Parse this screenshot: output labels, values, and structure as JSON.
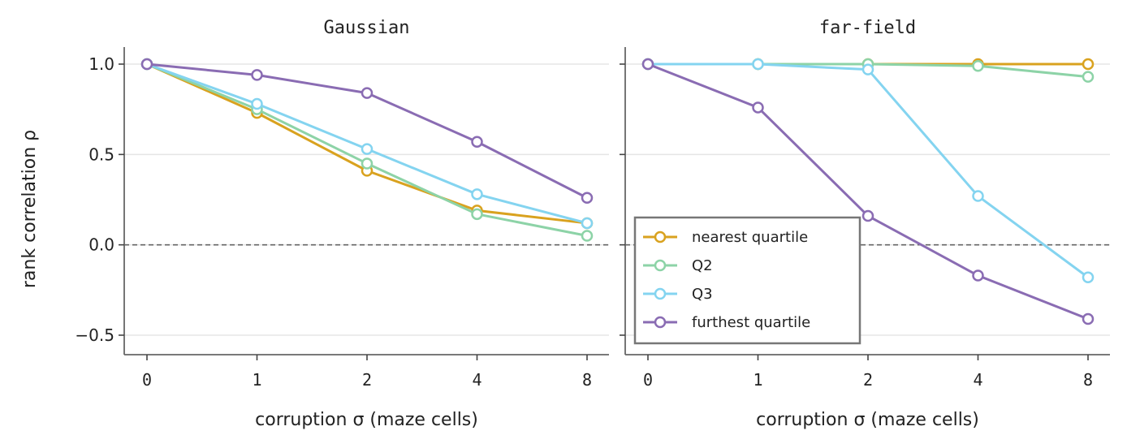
{
  "chart_data": [
    {
      "type": "line",
      "title": "Gaussian",
      "xlabel": "corruption σ (maze cells)",
      "ylabel": "rank correlation ρ",
      "categories": [
        "0",
        "1",
        "2",
        "4",
        "8"
      ],
      "ylim": [
        -0.6,
        1.1
      ],
      "yticks": [
        1.0,
        0.5,
        0.0,
        -0.5
      ],
      "ytick_labels": [
        "1.0",
        "0.5",
        "0.0",
        "−0.5"
      ],
      "grid": "horizontal",
      "reference_line": 0.0,
      "series": [
        {
          "name": "nearest quartile",
          "color": "#D9A21F",
          "values": [
            1.0,
            0.73,
            0.41,
            0.19,
            0.12
          ]
        },
        {
          "name": "Q2",
          "color": "#8DD3A7",
          "values": [
            1.0,
            0.75,
            0.45,
            0.17,
            0.05
          ]
        },
        {
          "name": "Q3",
          "color": "#84D4F0",
          "values": [
            1.0,
            0.78,
            0.53,
            0.28,
            0.12
          ]
        },
        {
          "name": "furthest quartile",
          "color": "#8A6CB3",
          "values": [
            1.0,
            0.94,
            0.84,
            0.57,
            0.26
          ]
        }
      ]
    },
    {
      "type": "line",
      "title": "far-field",
      "xlabel": "corruption σ (maze cells)",
      "ylabel": "",
      "categories": [
        "0",
        "1",
        "2",
        "4",
        "8"
      ],
      "ylim": [
        -0.6,
        1.1
      ],
      "yticks": [
        1.0,
        0.5,
        0.0,
        -0.5
      ],
      "grid": "horizontal",
      "reference_line": 0.0,
      "legend": "lower-left",
      "series": [
        {
          "name": "nearest quartile",
          "color": "#D9A21F",
          "values": [
            1.0,
            1.0,
            1.0,
            1.0,
            1.0
          ]
        },
        {
          "name": "Q2",
          "color": "#8DD3A7",
          "values": [
            1.0,
            1.0,
            1.0,
            0.99,
            0.93
          ]
        },
        {
          "name": "Q3",
          "color": "#84D4F0",
          "values": [
            1.0,
            1.0,
            0.97,
            0.27,
            -0.18
          ]
        },
        {
          "name": "furthest quartile",
          "color": "#8A6CB3",
          "values": [
            1.0,
            0.76,
            0.16,
            -0.17,
            -0.41
          ]
        }
      ]
    }
  ]
}
